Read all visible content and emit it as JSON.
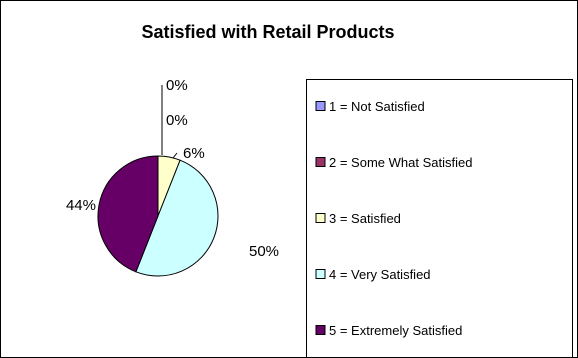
{
  "chart_data": {
    "type": "pie",
    "title": "Satisfied with Retail Products",
    "slices": [
      {
        "label": "1 = Not Satisfied",
        "value": 0,
        "value_label": "0%",
        "color": "#9999FF"
      },
      {
        "label": "2 = Some What Satisfied",
        "value": 0,
        "value_label": "0%",
        "color": "#993366"
      },
      {
        "label": "3 = Satisfied",
        "value": 6,
        "value_label": "6%",
        "color": "#FFFFCC"
      },
      {
        "label": "4 = Very Satisfied",
        "value": 50,
        "value_label": "50%",
        "color": "#CCFFFF"
      },
      {
        "label": "5 = Extremely Satisfied",
        "value": 44,
        "value_label": "44%",
        "color": "#660066"
      }
    ],
    "legend_position": "right"
  }
}
